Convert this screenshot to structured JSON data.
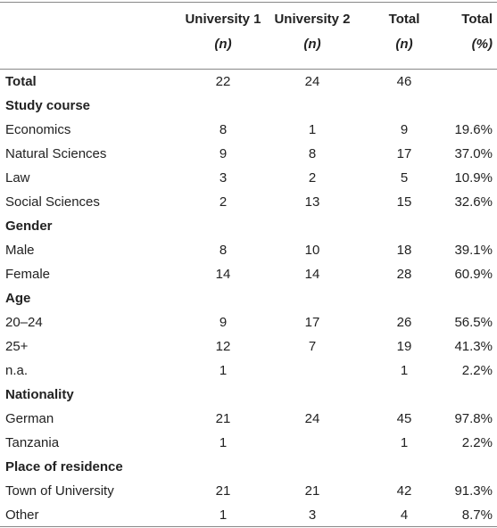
{
  "table": {
    "header": [
      [
        "University 1",
        "(n)"
      ],
      [
        "University 2",
        "(n)"
      ],
      [
        "Total",
        "(n)"
      ],
      [
        "Total",
        "(%)"
      ]
    ],
    "rows": [
      {
        "label": "Total",
        "cells": [
          22,
          24,
          46,
          null
        ],
        "bold": true
      },
      {
        "section": "Study course"
      },
      {
        "label": "Economics",
        "cells": [
          8,
          1,
          9,
          "19.6%"
        ]
      },
      {
        "label": "Natural Sciences",
        "cells": [
          9,
          8,
          17,
          "37.0%"
        ]
      },
      {
        "label": "Law",
        "cells": [
          3,
          2,
          5,
          "10.9%"
        ]
      },
      {
        "label": "Social Sciences",
        "cells": [
          2,
          13,
          15,
          "32.6%"
        ]
      },
      {
        "section": "Gender"
      },
      {
        "label": "Male",
        "cells": [
          8,
          10,
          18,
          "39.1%"
        ]
      },
      {
        "label": "Female",
        "cells": [
          14,
          14,
          28,
          "60.9%"
        ]
      },
      {
        "section": "Age"
      },
      {
        "label": "20–24",
        "cells": [
          9,
          17,
          26,
          "56.5%"
        ]
      },
      {
        "label": "25+",
        "cells": [
          12,
          7,
          19,
          "41.3%"
        ]
      },
      {
        "label": "n.a.",
        "cells": [
          1,
          null,
          1,
          "2.2%"
        ]
      },
      {
        "section": "Nationality"
      },
      {
        "label": "German",
        "cells": [
          21,
          24,
          45,
          "97.8%"
        ]
      },
      {
        "label": "Tanzania",
        "cells": [
          1,
          null,
          1,
          "2.2%"
        ]
      },
      {
        "section": "Place of residence"
      },
      {
        "label": "Town of University",
        "cells": [
          21,
          21,
          42,
          "91.3%"
        ]
      },
      {
        "label": "Other",
        "cells": [
          1,
          3,
          4,
          "8.7%"
        ]
      }
    ]
  }
}
